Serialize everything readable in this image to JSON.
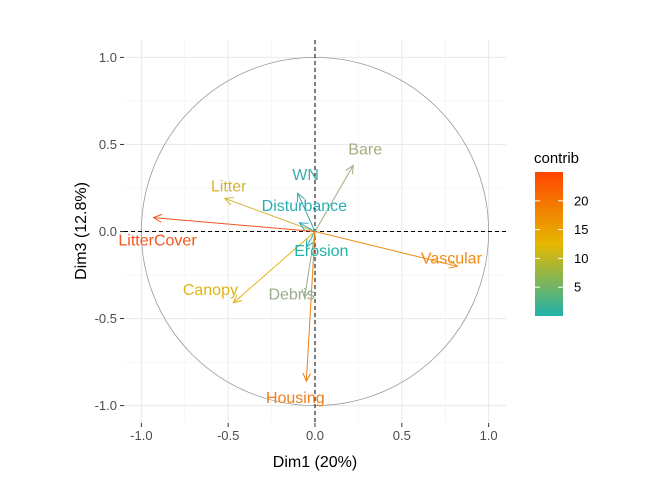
{
  "chart_data": {
    "type": "variable_correlation_circle",
    "xlabel": "Dim1 (20%)",
    "ylabel": "Dim3 (12.8%)",
    "xlim": [
      -1.1,
      1.1
    ],
    "ylim": [
      -1.1,
      1.1
    ],
    "x_ticks": [
      "-1.0",
      "-0.5",
      "0.0",
      "0.5",
      "1.0"
    ],
    "y_ticks": [
      "1.0",
      "0.5",
      "0.0",
      "-0.5",
      "-1.0"
    ],
    "grid": true,
    "legend": {
      "title": "contrib",
      "placement": "right",
      "range": [
        0,
        25
      ],
      "ticks": [
        "5",
        "10",
        "15",
        "20"
      ],
      "gradient": [
        "#20b2aa",
        "#e6b800",
        "#ff4500"
      ]
    },
    "variables": [
      {
        "name": "Bare",
        "x": 0.22,
        "y": 0.38,
        "contrib": 9,
        "color": "#a1ad7e"
      },
      {
        "name": "Litter",
        "x": -0.52,
        "y": 0.19,
        "contrib": 16,
        "color": "#d3b53a"
      },
      {
        "name": "WN",
        "x": -0.1,
        "y": 0.22,
        "contrib": 3,
        "color": "#41aaa9"
      },
      {
        "name": "Disturbance",
        "x": -0.09,
        "y": 0.05,
        "contrib": 1,
        "color": "#2badb7"
      },
      {
        "name": "LitterCover",
        "x": -0.93,
        "y": 0.08,
        "contrib": 24,
        "color": "#f2561d"
      },
      {
        "name": "Vascular",
        "x": 0.82,
        "y": -0.2,
        "contrib": 21,
        "color": "#f08a12"
      },
      {
        "name": "Erosion",
        "x": -0.05,
        "y": -0.09,
        "contrib": 1,
        "color": "#20b2aa"
      },
      {
        "name": "Canopy",
        "x": -0.47,
        "y": -0.41,
        "contrib": 17,
        "color": "#e0b313"
      },
      {
        "name": "Debris",
        "x": -0.06,
        "y": -0.38,
        "contrib": 8,
        "color": "#9aac8f"
      },
      {
        "name": "Housing",
        "x": -0.05,
        "y": -0.86,
        "contrib": 22,
        "color": "#f07d1a"
      }
    ]
  }
}
